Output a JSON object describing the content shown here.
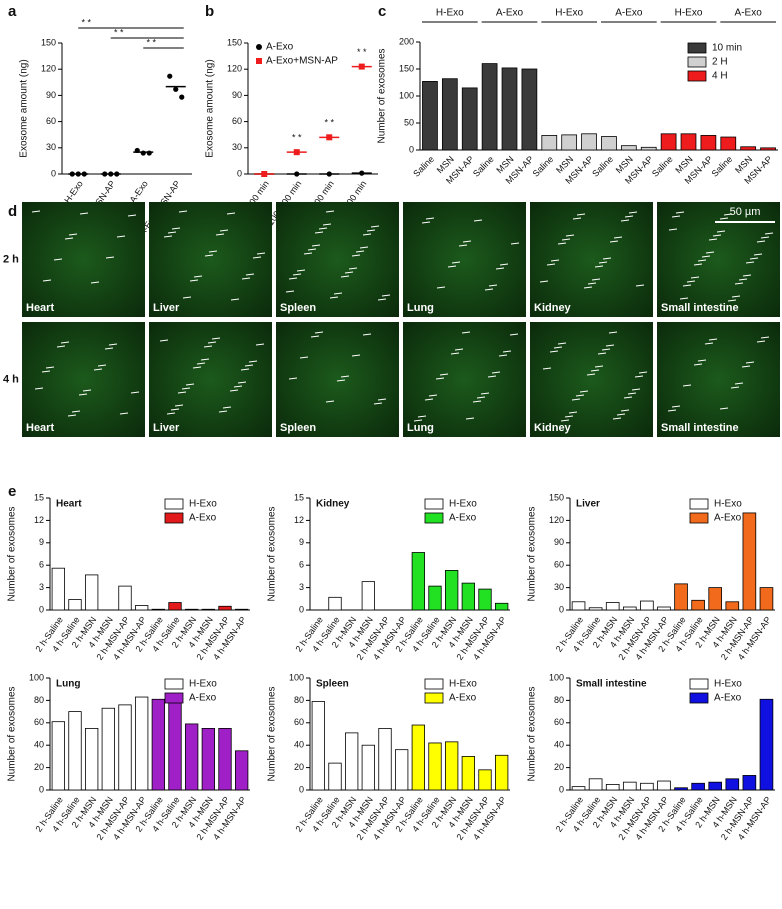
{
  "chart_data": [
    {
      "type": "dot",
      "panel_label": "a",
      "y_label": "Exosome amount (ng)",
      "categories": [
        "H-Exo",
        "H-Exo+MSN-AP",
        "A-Exo",
        "A-Exo+MSN-AP"
      ],
      "series": [
        {
          "color": "#000000",
          "values": [
            0,
            0,
            25,
            100
          ],
          "points": [
            [
              0,
              0,
              0
            ],
            [
              0,
              0,
              0
            ],
            [
              27,
              24,
              24
            ],
            [
              112,
              97,
              88
            ]
          ]
        }
      ],
      "ylim": [
        0,
        150
      ],
      "yticks": [
        0,
        30,
        60,
        90,
        120,
        150
      ],
      "annotations": [
        "* *",
        "* *",
        "* *"
      ]
    },
    {
      "type": "dot",
      "panel_label": "b",
      "y_label": "Exosome amount (ng)",
      "categories": [
        "0–100 min",
        "100–200 min",
        "200–300 min",
        "300–400 min"
      ],
      "series": [
        {
          "name": "A-Exo",
          "color": "#000000",
          "values": [
            0,
            0,
            0,
            1
          ]
        },
        {
          "name": "A-Exo+MSN-AP",
          "color": "#ee1c1c",
          "values": [
            0,
            25,
            42,
            123
          ]
        }
      ],
      "ylim": [
        0,
        150
      ],
      "yticks": [
        0,
        30,
        60,
        90,
        120,
        150
      ],
      "legend": "upper left",
      "annotations": [
        "* *",
        "* *",
        "* *"
      ]
    },
    {
      "type": "bar",
      "panel_label": "c",
      "y_label": "Number of exosomes",
      "categories": [
        "Saline",
        "MSN",
        "MSN-AP",
        "Saline",
        "MSN",
        "MSN-AP",
        "Saline",
        "MSN",
        "MSN-AP",
        "Saline",
        "MSN",
        "MSN-AP",
        "Saline",
        "MSN",
        "MSN-AP",
        "Saline",
        "MSN",
        "MSN-AP"
      ],
      "group_labels": [
        "H-Exo",
        "A-Exo",
        "H-Exo",
        "A-Exo",
        "H-Exo",
        "A-Exo"
      ],
      "series": [
        {
          "name": "10 min",
          "color": "#3a3a3a",
          "values": [
            127,
            132,
            115,
            160,
            152,
            150,
            null,
            null,
            null,
            null,
            null,
            null,
            null,
            null,
            null,
            null,
            null,
            null
          ]
        },
        {
          "name": "2 H",
          "color": "#d0d0d0",
          "values": [
            null,
            null,
            null,
            null,
            null,
            null,
            27,
            28,
            30,
            25,
            8,
            5,
            null,
            null,
            null,
            null,
            null,
            null
          ]
        },
        {
          "name": "4 H",
          "color": "#ee1c1c",
          "values": [
            null,
            null,
            null,
            null,
            null,
            null,
            null,
            null,
            null,
            null,
            null,
            null,
            30,
            30,
            27,
            24,
            6,
            4
          ]
        }
      ],
      "ylim": [
        0,
        200
      ],
      "yticks": [
        0,
        50,
        100,
        150,
        200
      ],
      "legend": "upper right"
    },
    {
      "type": "bar",
      "panel_label": "e",
      "title": "Heart",
      "y_label": "Number of exosomes",
      "categories": [
        "2 h-Saline",
        "4 h-Saline",
        "2 h-MSN",
        "4 h-MSN",
        "2 h-MSN-AP",
        "4 h-MSN-AP",
        "2 h-Saline",
        "4 h-Saline",
        "2 h-MSN",
        "4 h-MSN",
        "2 h-MSN-AP",
        "4 h-MSN-AP"
      ],
      "series": [
        {
          "name": "H-Exo",
          "color": "#ffffff",
          "values": [
            5.6,
            1.4,
            4.7,
            0,
            3.2,
            0.6,
            null,
            null,
            null,
            null,
            null,
            null
          ]
        },
        {
          "name": "A-Exo",
          "color": "#e31a1c",
          "values": [
            null,
            null,
            null,
            null,
            null,
            null,
            0.1,
            1.0,
            0.1,
            0.1,
            0.5,
            0.1
          ]
        }
      ],
      "ylim": [
        0,
        15
      ],
      "yticks": [
        0,
        3,
        6,
        9,
        12,
        15
      ],
      "legend": "upper right"
    },
    {
      "type": "bar",
      "title": "Kidney",
      "y_label": "Number of exosomes",
      "categories": [
        "2 h-Saline",
        "4 h-Saline",
        "2 h-MSN",
        "4 h-MSN",
        "2 h-MSN-AP",
        "4 h-MSN-AP",
        "2 h-Saline",
        "4 h-Saline",
        "2 h-MSN",
        "4 h-MSN",
        "2 h-MSN-AP",
        "4 h-MSN-AP"
      ],
      "series": [
        {
          "name": "H-Exo",
          "color": "#ffffff",
          "values": [
            0,
            1.7,
            0,
            3.8,
            0,
            0,
            null,
            null,
            null,
            null,
            null,
            null
          ]
        },
        {
          "name": "A-Exo",
          "color": "#22e022",
          "values": [
            null,
            null,
            null,
            null,
            null,
            null,
            7.7,
            3.2,
            5.3,
            3.6,
            2.8,
            0.9
          ]
        }
      ],
      "ylim": [
        0,
        15
      ],
      "yticks": [
        0,
        3,
        6,
        9,
        12,
        15
      ],
      "legend": "upper right"
    },
    {
      "type": "bar",
      "title": "Liver",
      "y_label": "Number of exosomes",
      "categories": [
        "2 h-Saline",
        "4 h-Saline",
        "2 h-MSN",
        "4 h-MSN",
        "2 h-MSN-AP",
        "4 h-MSN-AP",
        "2 h-Saline",
        "4 h-Saline",
        "2 h-MSN",
        "4 h-MSN",
        "2 h-MSN-AP",
        "4 h-MSN-AP"
      ],
      "series": [
        {
          "name": "H-Exo",
          "color": "#ffffff",
          "values": [
            11,
            3,
            10,
            4,
            12,
            4,
            null,
            null,
            null,
            null,
            null,
            null
          ]
        },
        {
          "name": "A-Exo",
          "color": "#f26a1b",
          "values": [
            null,
            null,
            null,
            null,
            null,
            null,
            35,
            13,
            30,
            11,
            130,
            30
          ]
        }
      ],
      "ylim": [
        0,
        150
      ],
      "yticks": [
        0,
        30,
        60,
        90,
        120,
        150
      ],
      "legend": "upper right"
    },
    {
      "type": "bar",
      "title": "Lung",
      "y_label": "Number of exosomes",
      "categories": [
        "2 h-Saline",
        "4 h-Saline",
        "2 h-MSN",
        "4 h-MSN",
        "2 h-MSN-AP",
        "4 h-MSN-AP",
        "2 h-Saline",
        "4 h-Saline",
        "2 h-MSN",
        "4 h-MSN",
        "2 h-MSN-AP",
        "4 h-MSN-AP"
      ],
      "series": [
        {
          "name": "H-Exo",
          "color": "#ffffff",
          "values": [
            61,
            70,
            55,
            73,
            76,
            83,
            null,
            null,
            null,
            null,
            null,
            null
          ]
        },
        {
          "name": "A-Exo",
          "color": "#a020c8",
          "values": [
            null,
            null,
            null,
            null,
            null,
            null,
            81,
            80,
            59,
            55,
            55,
            35
          ]
        }
      ],
      "ylim": [
        0,
        100
      ],
      "yticks": [
        0,
        20,
        40,
        60,
        80,
        100
      ],
      "legend": "upper right"
    },
    {
      "type": "bar",
      "title": "Spleen",
      "y_label": "Number of exosomes",
      "categories": [
        "2 h-Saline",
        "4 h-Saline",
        "2 h-MSN",
        "4 h-MSN",
        "2 h-MSN-AP",
        "4 h-MSN-AP",
        "2 h-Saline",
        "4 h-Saline",
        "2 h-MSN",
        "4 h-MSN",
        "2 h-MSN-AP",
        "4 h-MSN-AP"
      ],
      "series": [
        {
          "name": "H-Exo",
          "color": "#ffffff",
          "values": [
            79,
            24,
            51,
            40,
            55,
            36,
            null,
            null,
            null,
            null,
            null,
            null
          ]
        },
        {
          "name": "A-Exo",
          "color": "#ffff00",
          "values": [
            null,
            null,
            null,
            null,
            null,
            null,
            58,
            42,
            43,
            30,
            18,
            31
          ]
        }
      ],
      "ylim": [
        0,
        100
      ],
      "yticks": [
        0,
        20,
        40,
        60,
        80,
        100
      ],
      "legend": "upper right"
    },
    {
      "type": "bar",
      "title": "Small intestine",
      "y_label": "Number of exosomes",
      "categories": [
        "2 h-Saline",
        "4 h-Saline",
        "2 h-MSN",
        "4 h-MSN",
        "2 h-MSN-AP",
        "4 h-MSN-AP",
        "2 h-Saline",
        "4 h-Saline",
        "2 h-MSN",
        "4 h-MSN",
        "2 h-MSN-AP",
        "4 h-MSN-AP"
      ],
      "series": [
        {
          "name": "H-Exo",
          "color": "#ffffff",
          "values": [
            3,
            10,
            5,
            7,
            6,
            8,
            null,
            null,
            null,
            null,
            null,
            null
          ]
        },
        {
          "name": "A-Exo",
          "color": "#1010e0",
          "values": [
            null,
            null,
            null,
            null,
            null,
            null,
            2,
            6,
            7,
            10,
            13,
            81
          ]
        }
      ],
      "ylim": [
        0,
        100
      ],
      "yticks": [
        0,
        20,
        40,
        60,
        80,
        100
      ],
      "legend": "upper right"
    }
  ],
  "image_panel": {
    "panel_label": "d",
    "rows": [
      "2 h",
      "4 h"
    ],
    "organs": [
      "Heart",
      "Liver",
      "Spleen",
      "Lung",
      "Kidney",
      "Small intestine"
    ],
    "scale_bar": "50 µm"
  }
}
